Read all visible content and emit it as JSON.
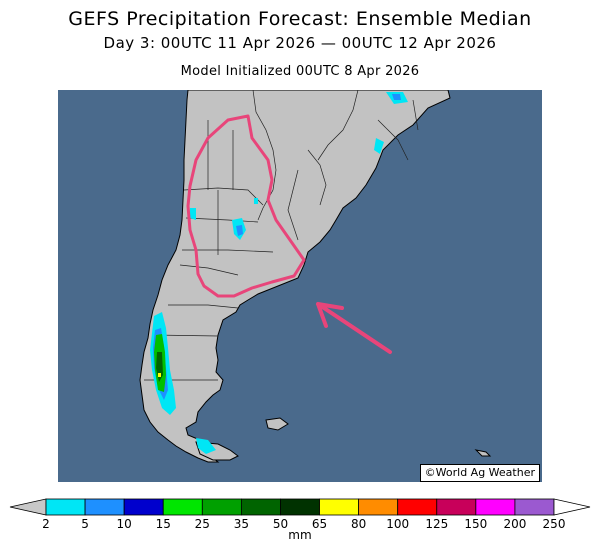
{
  "title": "GEFS Precipitation Forecast: Ensemble Median",
  "subtitle": "Day 3: 00UTC 11 Apr 2026 — 00UTC 12 Apr 2026",
  "init_line": "Model Initialized 00UTC 8 Apr 2026",
  "credit": "©World Ag Weather",
  "colors": {
    "ocean": "#4a6a8c",
    "land": "#c2c2c2",
    "highlight": "#e8457a",
    "outline": "#000000"
  },
  "legend": {
    "unit": "mm",
    "ticks": [
      "2",
      "5",
      "10",
      "15",
      "25",
      "35",
      "50",
      "65",
      "80",
      "100",
      "125",
      "150",
      "200",
      "250"
    ],
    "colors": [
      "#00e6f5",
      "#1e90ff",
      "#0000cd",
      "#00e600",
      "#00a000",
      "#006400",
      "#003200",
      "#ffff00",
      "#ff8c00",
      "#ff0000",
      "#c8005a",
      "#ff00ff",
      "#9b59d0"
    ],
    "under_color": "#c8c8c8",
    "over_color": "#ffffff"
  }
}
